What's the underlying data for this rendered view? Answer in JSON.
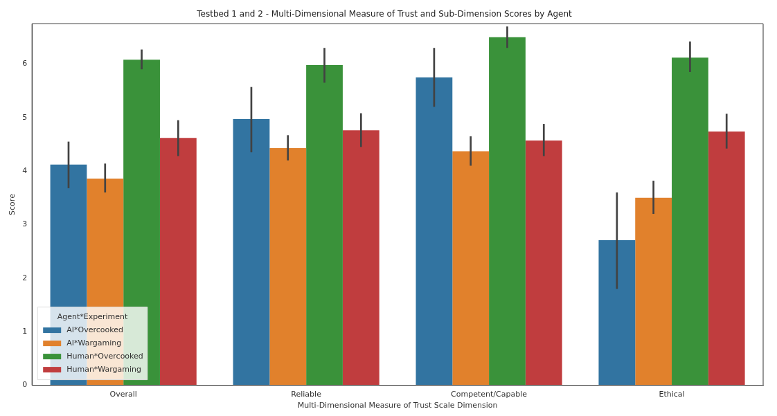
{
  "chart_data": {
    "type": "bar",
    "title": "Testbed 1 and 2 - Multi-Dimensional Measure of Trust and Sub-Dimension Scores by Agent",
    "xlabel": "Multi-Dimensional Measure of Trust Scale Dimension",
    "ylabel": "Score",
    "legend_title": "Agent*Experiment",
    "categories": [
      "Overall",
      "Reliable",
      "Competent/Capable",
      "Ethical"
    ],
    "series": [
      {
        "name": "AI*Overcooked",
        "color": "#3274a1",
        "values": [
          4.12,
          4.97,
          5.75,
          2.71
        ],
        "errors": [
          [
            3.68,
            4.55
          ],
          [
            4.35,
            5.57
          ],
          [
            5.2,
            6.3
          ],
          [
            1.8,
            3.6
          ]
        ]
      },
      {
        "name": "AI*Wargaming",
        "color": "#e1812c",
        "values": [
          3.86,
          4.43,
          4.37,
          3.5
        ],
        "errors": [
          [
            3.6,
            4.14
          ],
          [
            4.2,
            4.67
          ],
          [
            4.1,
            4.65
          ],
          [
            3.2,
            3.82
          ]
        ]
      },
      {
        "name": "Human*Overcooked",
        "color": "#3a923a",
        "values": [
          6.08,
          5.98,
          6.5,
          6.12
        ],
        "errors": [
          [
            5.9,
            6.27
          ],
          [
            5.65,
            6.3
          ],
          [
            6.3,
            6.7
          ],
          [
            5.85,
            6.42
          ]
        ]
      },
      {
        "name": "Human*Wargaming",
        "color": "#c03d3e",
        "values": [
          4.62,
          4.76,
          4.57,
          4.74
        ],
        "errors": [
          [
            4.28,
            4.95
          ],
          [
            4.45,
            5.08
          ],
          [
            4.28,
            4.88
          ],
          [
            4.42,
            5.07
          ]
        ]
      }
    ],
    "ylim": [
      0,
      6.75
    ],
    "yticks": [
      0,
      1,
      2,
      3,
      4,
      5,
      6
    ],
    "grid": false,
    "legend": "bottom left"
  }
}
